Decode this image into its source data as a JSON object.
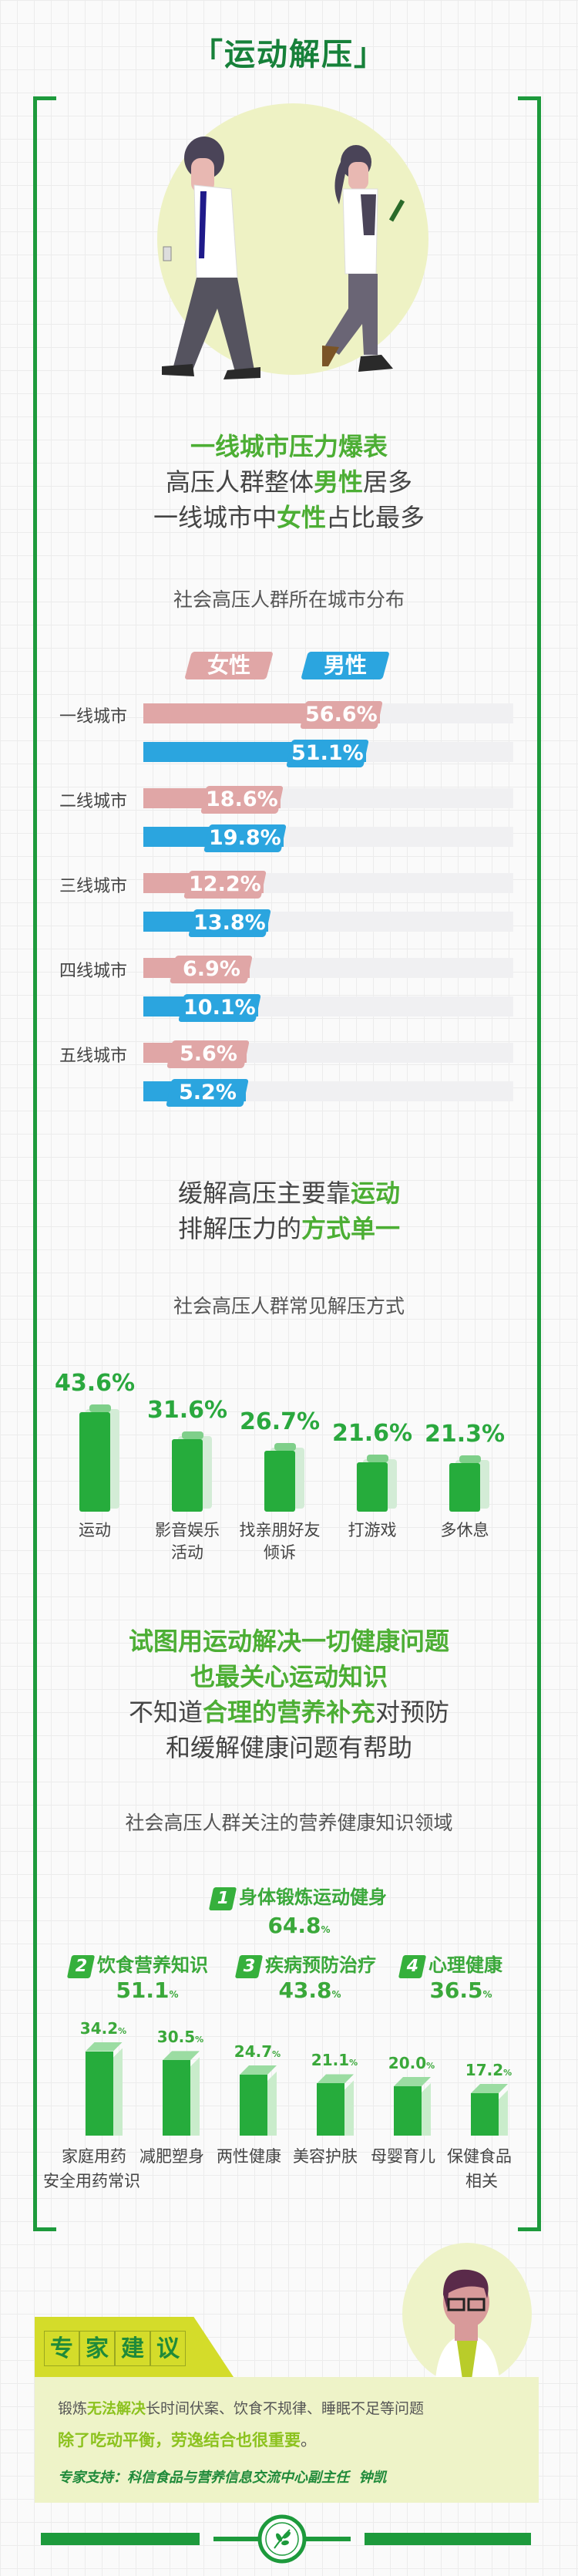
{
  "title": "「运动解压」",
  "colors": {
    "title": "#17813a",
    "accent_green": "#4cae34",
    "bar_green": "#26ac3c",
    "female": "#e0a6a6",
    "male": "#2ba5df",
    "advice_tab": "#d4dc2a",
    "advice_bg": "#eef3c8"
  },
  "illustrations": [
    "man-walking-with-phone",
    "woman-walking-with-phone",
    "expert-doctor-with-glasses",
    "leaf-emblem"
  ],
  "section1": {
    "headline": "一线城市压力爆表",
    "line2": {
      "pre": "高压人群整体",
      "em": "男性",
      "post": "居多"
    },
    "line3": {
      "pre": "一线城市中",
      "em": "女性",
      "post": "占比最多"
    }
  },
  "section2": {
    "line1": {
      "pre": "缓解高压主要靠",
      "em": "运动"
    },
    "line2": {
      "pre": "排解压力的",
      "em": "方式单一"
    }
  },
  "section3": {
    "line1": "试图用运动解决一切健康问题",
    "line2": "也最关心运动知识",
    "line3": {
      "pre": "不知道",
      "em": "合理的营养补充",
      "post": "对预防"
    },
    "line4": "和缓解健康问题有帮助"
  },
  "chart_data": [
    {
      "type": "bar",
      "orientation": "horizontal",
      "title": "社会高压人群所在城市分布",
      "legend": [
        "女性",
        "男性"
      ],
      "legend_placement": "top",
      "categories": [
        "一线城市",
        "二线城市",
        "三线城市",
        "四线城市",
        "五线城市"
      ],
      "series": [
        {
          "name": "女性",
          "values": [
            56.6,
            18.6,
            12.2,
            6.9,
            5.6
          ],
          "labels": [
            "56.6%",
            "18.6%",
            "12.2%",
            "6.9%",
            "5.6%"
          ]
        },
        {
          "name": "男性",
          "values": [
            51.1,
            19.8,
            13.8,
            10.1,
            5.2
          ],
          "labels": [
            "51.1%",
            "19.8%",
            "13.8%",
            "10.1%",
            "5.2%"
          ]
        }
      ]
    },
    {
      "type": "bar",
      "title": "社会高压人群常见解压方式",
      "categories": [
        [
          "运动"
        ],
        [
          "影音娱乐",
          "活动"
        ],
        [
          "找亲朋好友",
          "倾诉"
        ],
        [
          "打游戏"
        ],
        [
          "多休息"
        ]
      ],
      "values": [
        43.6,
        31.6,
        26.7,
        21.6,
        21.3
      ],
      "labels": [
        "43.6%",
        "31.6%",
        "26.7%",
        "21.6%",
        "21.3%"
      ]
    },
    {
      "type": "bar",
      "title": "社会高压人群关注的营养健康知识领域",
      "top_ranked": [
        {
          "rank": "1",
          "name": "身体锻炼运动健身",
          "value": "64.8",
          "unit": "%"
        },
        {
          "rank": "2",
          "name": "饮食营养知识",
          "value": "51.1",
          "unit": "%"
        },
        {
          "rank": "3",
          "name": "疾病预防治疗",
          "value": "43.8",
          "unit": "%"
        },
        {
          "rank": "4",
          "name": "心理健康",
          "value": "36.5",
          "unit": "%"
        }
      ],
      "categories": [
        "家庭用药安全用药常识",
        "减肥塑身",
        "两性健康",
        "美容护肤",
        "母婴育儿",
        "保健食品相关"
      ],
      "category_lines": [
        [
          "家庭用药",
          "安全用药常识"
        ],
        [
          "减肥塑身"
        ],
        [
          "两性健康"
        ],
        [
          "美容护肤"
        ],
        [
          "母婴育儿"
        ],
        [
          "保健食品",
          "相关"
        ]
      ],
      "values": [
        34.2,
        30.5,
        24.7,
        21.1,
        20.0,
        17.2
      ],
      "labels": [
        "34.2",
        "30.5",
        "24.7",
        "21.1",
        "20.0",
        "17.2"
      ],
      "unit": "%"
    }
  ],
  "advice": {
    "tab": [
      "专",
      "家",
      "建",
      "议"
    ],
    "line1": {
      "pre": "锻炼",
      "em": "无法解决",
      "post": "长时间伏案、饮食不规律、睡眠不足等问题"
    },
    "line2": {
      "em": "除了吃动平衡，劳逸结合也很重要",
      "post": "。"
    },
    "support": "专家支持：科信食品与营养信息交流中心副主任  钟凯"
  }
}
